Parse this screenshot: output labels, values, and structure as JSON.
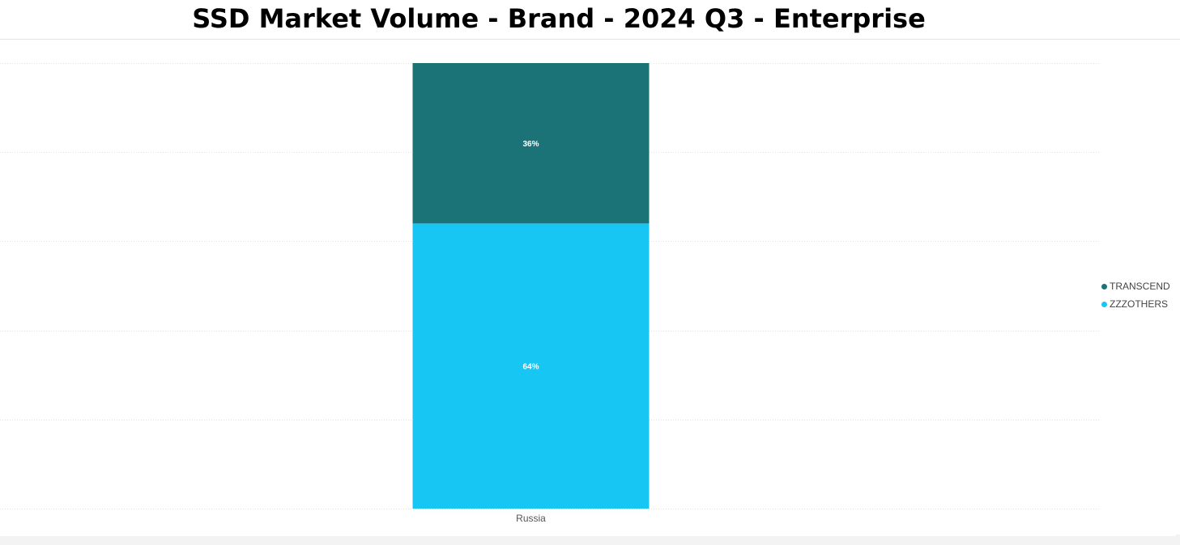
{
  "title": "SSD Market Volume - Brand - 2024 Q3 - Enterprise",
  "chart_data": {
    "type": "bar",
    "stacked": true,
    "normalized": "percent",
    "categories": [
      "Russia"
    ],
    "series": [
      {
        "name": "ZZZOTHERS",
        "values": [
          64
        ],
        "label": "64%",
        "color": "#17c6f3"
      },
      {
        "name": "TRANSCEND",
        "values": [
          36
        ],
        "label": "36%",
        "color": "#1b7377"
      }
    ],
    "ylim": [
      0,
      100
    ],
    "yticks": [
      0,
      20,
      40,
      60,
      80,
      100
    ],
    "grid": true,
    "y_tick_labels_visible": false,
    "legend": {
      "position": "right",
      "order": [
        "TRANSCEND",
        "ZZZOTHERS"
      ]
    }
  }
}
